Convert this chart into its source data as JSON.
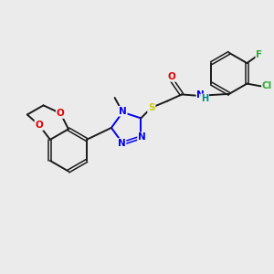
{
  "background_color": "#ebebeb",
  "bond_color": "#1a1a1a",
  "atom_colors": {
    "N": "#0000ee",
    "O": "#dd0000",
    "S": "#cccc00",
    "F": "#33aa33",
    "Cl": "#33aa33",
    "NH": "#008888",
    "C": "#1a1a1a"
  },
  "figsize": [
    3.0,
    3.0
  ],
  "dpi": 100
}
